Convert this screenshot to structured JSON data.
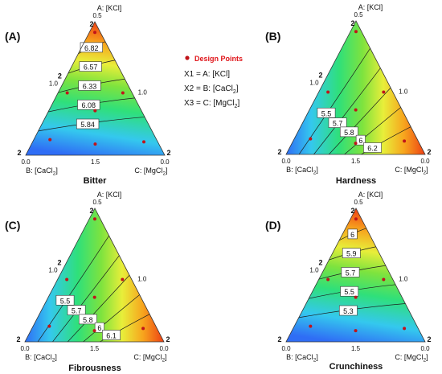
{
  "legend": {
    "design_points": "Design Points",
    "x1": "X1 = A: [KCl]",
    "x2": "X2 = B: [CaCl",
    "x2_sub": "2",
    "x3": "X3 = C: [MgCl",
    "x3_sub": "2",
    "close": "]",
    "marker_color": "#c0141a"
  },
  "chart_data": [
    {
      "type": "contour",
      "panel": "(A)",
      "title": "Bitter",
      "vertex_a": {
        "label": "A: [KCl]",
        "max": "0.5",
        "min": "2"
      },
      "vertex_b": {
        "label": "B: [CaCl",
        "sub": "2",
        "max": "0.0",
        "min": "2"
      },
      "vertex_c": {
        "label": "C: [MgCl",
        "sub": "2",
        "max": "0.0",
        "min": "2"
      },
      "side_ticks": {
        "ab": "1.0",
        "ac": "1.0",
        "bc": "1.5"
      },
      "contour_levels": [
        5.84,
        6.08,
        6.33,
        6.57,
        6.82
      ],
      "colormap": "blue-green-yellow-red",
      "high_vertex": "A",
      "design_points": 7
    },
    {
      "type": "contour",
      "panel": "(B)",
      "title": "Hardness",
      "vertex_a": {
        "label": "A: [KCl]",
        "max": "0.5",
        "min": "2"
      },
      "vertex_b": {
        "label": "B: [CaCl",
        "sub": "2",
        "max": "0.0",
        "min": "2"
      },
      "vertex_c": {
        "label": "C: [MgCl",
        "sub": "2",
        "max": "0.0",
        "min": "2"
      },
      "side_ticks": {
        "ab": "1.0",
        "ac": "1.0",
        "bc": "1.5"
      },
      "contour_levels": [
        5.5,
        5.7,
        5.8,
        6.0,
        6.2
      ],
      "colormap": "blue-green-yellow-red",
      "high_vertex": "C",
      "design_points": 7
    },
    {
      "type": "contour",
      "panel": "(C)",
      "title": "Fibrousness",
      "vertex_a": {
        "label": "A: [KCl]",
        "max": "0.5",
        "min": "2"
      },
      "vertex_b": {
        "label": "B: [CaCl",
        "sub": "2",
        "max": "0.0",
        "min": "2"
      },
      "vertex_c": {
        "label": "C: [MgCl",
        "sub": "2",
        "max": "0.0",
        "min": "2"
      },
      "side_ticks": {
        "ab": "1.0",
        "ac": "1.0",
        "bc": "1.5"
      },
      "contour_levels": [
        5.5,
        5.7,
        5.8,
        6.0,
        6.1
      ],
      "colormap": "blue-green-yellow-red",
      "high_vertex": "C",
      "design_points": 7
    },
    {
      "type": "contour",
      "panel": "(D)",
      "title": "Crunchiness",
      "vertex_a": {
        "label": "A: [KCl]",
        "max": "0.5",
        "min": "2"
      },
      "vertex_b": {
        "label": "B: [CaCl",
        "sub": "2",
        "max": "0.0",
        "min": "2"
      },
      "vertex_c": {
        "label": "C: [MgCl",
        "sub": "2",
        "max": "0.0",
        "min": "2"
      },
      "side_ticks": {
        "ab": "1.0",
        "ac": "1.0",
        "bc": "1.5"
      },
      "contour_levels": [
        5.3,
        5.5,
        5.7,
        5.9,
        6.0
      ],
      "colormap": "blue-green-yellow-red",
      "high_vertex": "A",
      "design_points": 7
    }
  ]
}
